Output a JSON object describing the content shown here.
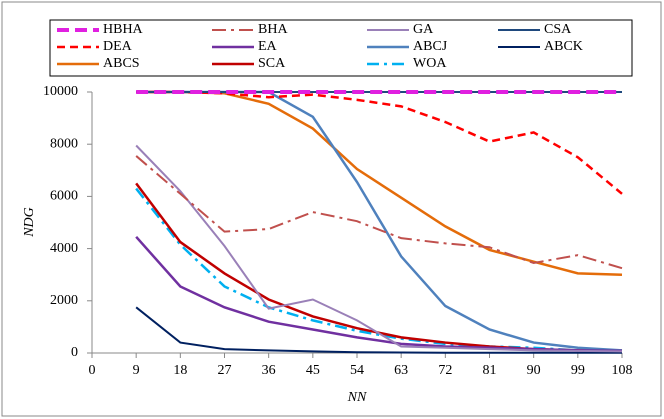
{
  "chart_data": {
    "type": "line",
    "xlabel": "NN",
    "ylabel": "NDG",
    "x": [
      9,
      18,
      27,
      36,
      45,
      54,
      63,
      72,
      81,
      90,
      99,
      108
    ],
    "xlim": [
      0,
      108
    ],
    "xticks": [
      0,
      9,
      18,
      27,
      36,
      45,
      54,
      63,
      72,
      81,
      90,
      99,
      108
    ],
    "ylim": [
      0,
      10000
    ],
    "yticks": [
      0,
      2000,
      4000,
      6000,
      8000,
      10000
    ],
    "legend": "top",
    "series": [
      {
        "name": "HBHA",
        "color": "#e020e0",
        "values": [
          10000,
          10000,
          10000,
          10000,
          10000,
          10000,
          10000,
          10000,
          10000,
          10000,
          10000,
          10000
        ]
      },
      {
        "name": "BHA",
        "color": "#c0504d",
        "values": [
          7550,
          6100,
          4650,
          4750,
          5400,
          5050,
          4400,
          4200,
          4050,
          3450,
          3750,
          3250
        ]
      },
      {
        "name": "GA",
        "color": "#9a80b8",
        "values": [
          7950,
          6200,
          4100,
          1700,
          2050,
          1250,
          250,
          200,
          150,
          100,
          80,
          60
        ]
      },
      {
        "name": "CSA",
        "color": "#1f497d",
        "values": [
          10000,
          10000,
          10000,
          10000,
          10000,
          10000,
          10000,
          10000,
          10000,
          10000,
          10000,
          10000
        ]
      },
      {
        "name": "DEA",
        "color": "#ff0000",
        "values": [
          10000,
          10000,
          9950,
          9800,
          9900,
          9700,
          9450,
          8850,
          8100,
          8450,
          7500,
          6100
        ]
      },
      {
        "name": "EA",
        "color": "#7030a0",
        "values": [
          4450,
          2550,
          1750,
          1200,
          900,
          600,
          350,
          250,
          200,
          150,
          100,
          80
        ]
      },
      {
        "name": "ABCJ",
        "color": "#4f81bd",
        "values": [
          10000,
          10000,
          10000,
          10000,
          9050,
          6550,
          3700,
          1800,
          900,
          400,
          200,
          100
        ]
      },
      {
        "name": "ABCK",
        "color": "#002060",
        "values": [
          1750,
          400,
          150,
          100,
          60,
          30,
          20,
          10,
          10,
          10,
          10,
          10
        ]
      },
      {
        "name": "ABCS",
        "color": "#e46c0a",
        "values": [
          10000,
          10000,
          9950,
          9550,
          8600,
          7050,
          5950,
          4850,
          3950,
          3500,
          3050,
          3000
        ]
      },
      {
        "name": "SCA",
        "color": "#c00000",
        "values": [
          6500,
          4250,
          3050,
          2050,
          1400,
          950,
          600,
          400,
          250,
          150,
          100,
          100
        ]
      },
      {
        "name": "WOA",
        "color": "#00b0f0",
        "values": [
          6300,
          4150,
          2550,
          1750,
          1250,
          850,
          550,
          350,
          250,
          200,
          100,
          80
        ]
      }
    ]
  }
}
